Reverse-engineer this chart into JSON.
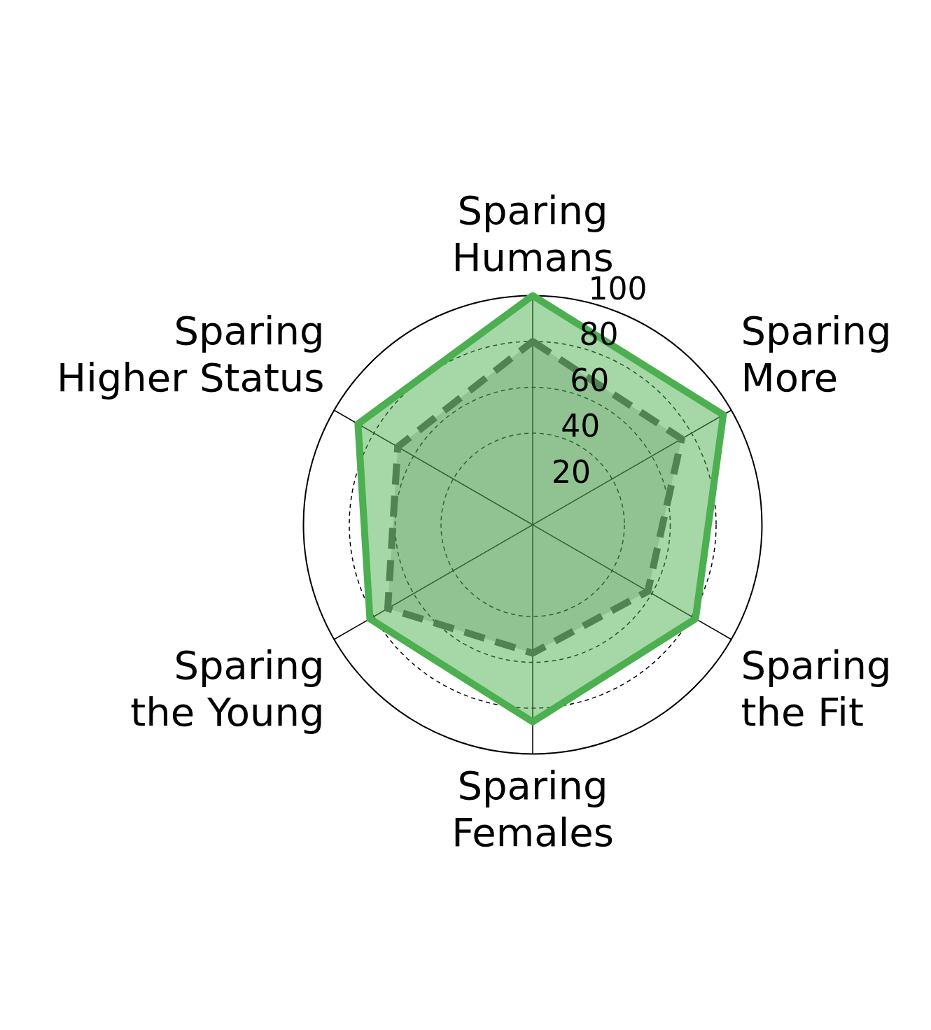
{
  "chart_data": {
    "type": "radar",
    "categories": [
      "Sparing\nHumans",
      "Sparing\nMore",
      "Sparing\nthe Fit",
      "Sparing\nFemales",
      "Sparing\nthe Young",
      "Sparing\nHigher Status"
    ],
    "series": [
      {
        "color": "#4caf50",
        "line_style": "solid",
        "values": [
          100,
          96,
          82,
          86,
          82,
          88
        ]
      },
      {
        "color": "#555555",
        "line_style": "dashed",
        "values": [
          80,
          75,
          58,
          56,
          73,
          68
        ]
      }
    ],
    "ylim": [
      0,
      100
    ],
    "yticks": [
      20,
      40,
      60,
      80,
      100
    ],
    "grid": true,
    "marker": "none",
    "legend": false
  }
}
